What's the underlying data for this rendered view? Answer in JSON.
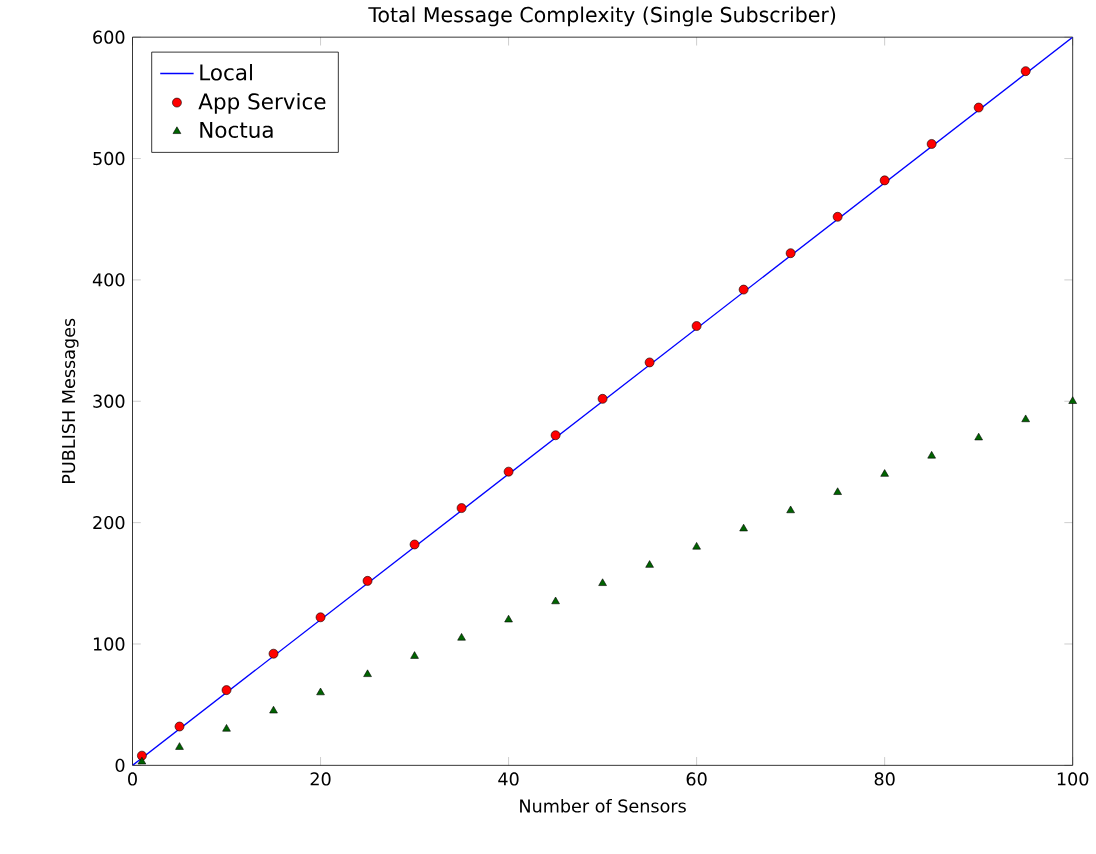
{
  "chart_data": {
    "type": "line",
    "title": "Total Message Complexity (Single Subscriber)",
    "xlabel": "Number of Sensors",
    "ylabel": "PUBLISH Messages",
    "xlim": [
      0,
      100
    ],
    "ylim": [
      0,
      600
    ],
    "xticks": [
      0,
      20,
      40,
      60,
      80,
      100
    ],
    "yticks": [
      0,
      100,
      200,
      300,
      400,
      500,
      600
    ],
    "grid": false,
    "legend": "top left",
    "series": [
      {
        "name": "Local",
        "color": "#0000ff",
        "marker": "none",
        "x": [
          0,
          100
        ],
        "values": [
          0,
          600
        ]
      },
      {
        "name": "App Service",
        "type": "scatter",
        "color": "#ff0000",
        "marker": "circle",
        "x": [
          1,
          5,
          10,
          15,
          20,
          25,
          30,
          35,
          40,
          45,
          50,
          55,
          60,
          65,
          70,
          75,
          80,
          85,
          90,
          95
        ],
        "values": [
          8,
          32,
          62,
          92,
          122,
          152,
          182,
          212,
          242,
          272,
          302,
          332,
          362,
          392,
          422,
          452,
          482,
          512,
          542,
          572
        ]
      },
      {
        "name": "Noctua",
        "type": "scatter",
        "color": "#006400",
        "marker": "triangle",
        "x": [
          1,
          5,
          10,
          15,
          20,
          25,
          30,
          35,
          40,
          45,
          50,
          55,
          60,
          65,
          70,
          75,
          80,
          85,
          90,
          95,
          100
        ],
        "values": [
          3,
          15,
          30,
          45,
          60,
          75,
          90,
          105,
          120,
          135,
          150,
          165,
          180,
          195,
          210,
          225,
          240,
          255,
          270,
          285,
          300
        ]
      }
    ]
  }
}
